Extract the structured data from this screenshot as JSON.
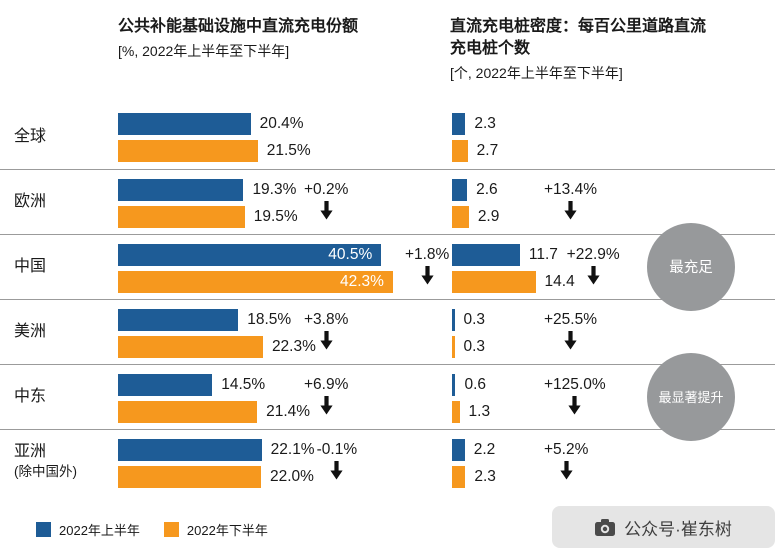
{
  "header": {
    "left_title": "公共补能基础设施中直流充电份额",
    "left_subtitle": "[%, 2022年上半年至下半年]",
    "right_title": "直流充电桩密度：每百公里道路直流充电桩个数",
    "right_subtitle": "[个, 2022年上半年至下半年]"
  },
  "legend": {
    "h1": "2022年上半年",
    "h2": "2022年下半年"
  },
  "watermark": {
    "text": "公众号·崔东树",
    "icon": "camera-icon"
  },
  "colors": {
    "h1_blue": "#1e5c96",
    "h2_orange": "#f6981e",
    "badge_gray": "#97999b",
    "separator": "#9b9b9b"
  },
  "chart_data": {
    "type": "bar",
    "series": [
      "2022年上半年",
      "2022年下半年"
    ],
    "left_chart": {
      "title": "公共补能基础设施中直流充电份额",
      "unit": "%",
      "xlim": [
        0,
        45
      ]
    },
    "right_chart": {
      "title": "直流充电桩密度：每百公里道路直流充电桩个数",
      "unit": "个",
      "xlim": [
        0,
        15
      ]
    },
    "rows": [
      {
        "key": "global",
        "region": "全球",
        "region_note": "",
        "left": {
          "h1": 20.4,
          "h2": 21.5,
          "h1_label": "20.4%",
          "h2_label": "21.5%",
          "change": ""
        },
        "right": {
          "h1": 2.3,
          "h2": 2.7,
          "h1_label": "2.3",
          "h2_label": "2.7",
          "change": ""
        },
        "badge": ""
      },
      {
        "key": "europe",
        "region": "欧洲",
        "region_note": "",
        "left": {
          "h1": 19.3,
          "h2": 19.5,
          "h1_label": "19.3%",
          "h2_label": "19.5%",
          "change": "+0.2%"
        },
        "right": {
          "h1": 2.6,
          "h2": 2.9,
          "h1_label": "2.6",
          "h2_label": "2.9",
          "change": "+13.4%"
        },
        "badge": ""
      },
      {
        "key": "china",
        "region": "中国",
        "region_note": "",
        "left": {
          "h1": 40.5,
          "h2": 42.3,
          "h1_label": "40.5%",
          "h2_label": "42.3%",
          "change": "+1.8%",
          "labels_inside": true
        },
        "right": {
          "h1": 11.7,
          "h2": 14.4,
          "h1_label": "11.7",
          "h2_label": "14.4",
          "change": "+22.9%"
        },
        "badge": "最充足"
      },
      {
        "key": "americas",
        "region": "美洲",
        "region_note": "",
        "left": {
          "h1": 18.5,
          "h2": 22.3,
          "h1_label": "18.5%",
          "h2_label": "22.3%",
          "change": "+3.8%"
        },
        "right": {
          "h1": 0.3,
          "h2": 0.3,
          "h1_label": "0.3",
          "h2_label": "0.3",
          "change": "+25.5%"
        },
        "badge": ""
      },
      {
        "key": "middle-east",
        "region": "中东",
        "region_note": "",
        "left": {
          "h1": 14.5,
          "h2": 21.4,
          "h1_label": "14.5%",
          "h2_label": "21.4%",
          "change": "+6.9%"
        },
        "right": {
          "h1": 0.6,
          "h2": 1.3,
          "h1_label": "0.6",
          "h2_label": "1.3",
          "change": "+125.0%"
        },
        "badge": "最显著提升"
      },
      {
        "key": "asia-ex-china",
        "region": "亚洲",
        "region_note": "(除中国外)",
        "left": {
          "h1": 22.1,
          "h2": 22.0,
          "h1_label": "22.1%",
          "h2_label": "22.0%",
          "change": "-0.1%"
        },
        "right": {
          "h1": 2.2,
          "h2": 2.3,
          "h1_label": "2.2",
          "h2_label": "2.3",
          "change": "+5.2%"
        },
        "badge": ""
      }
    ]
  }
}
